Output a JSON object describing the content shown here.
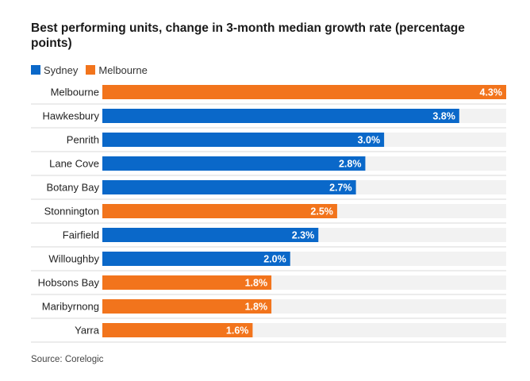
{
  "title": "Best performing units, change in 3-month median growth rate (percentage points)",
  "source": "Source: Corelogic",
  "colors": {
    "Sydney": "#0a68c9",
    "Melbourne": "#f2741c",
    "track": "#f2f2f2"
  },
  "chart_data": {
    "type": "bar",
    "orientation": "horizontal",
    "title": "Best performing units, change in 3-month median growth rate (percentage points)",
    "legend": [
      "Sydney",
      "Melbourne"
    ],
    "legend_position": "top-left",
    "xlim": [
      0,
      4.3
    ],
    "grid": false,
    "categories": [
      "Melbourne",
      "Hawkesbury",
      "Penrith",
      "Lane Cove",
      "Botany Bay",
      "Stonnington",
      "Fairfield",
      "Willoughby",
      "Hobsons Bay",
      "Maribyrnong",
      "Yarra"
    ],
    "values": [
      4.3,
      3.8,
      3.0,
      2.8,
      2.7,
      2.5,
      2.3,
      2.0,
      1.8,
      1.8,
      1.6
    ],
    "labels": [
      "4.3%",
      "3.8%",
      "3.0%",
      "2.8%",
      "2.7%",
      "2.5%",
      "2.3%",
      "2.0%",
      "1.8%",
      "1.8%",
      "1.6%"
    ],
    "groups": [
      "Melbourne",
      "Sydney",
      "Sydney",
      "Sydney",
      "Sydney",
      "Melbourne",
      "Sydney",
      "Sydney",
      "Melbourne",
      "Melbourne",
      "Melbourne"
    ]
  }
}
